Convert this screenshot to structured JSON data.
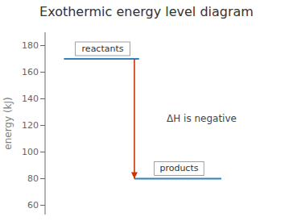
{
  "chart_data": {
    "type": "energy_level",
    "title": "Exothermic energy level diagram",
    "ylabel": "energy (kJ)",
    "categories": [
      "reactants",
      "products"
    ],
    "values": [
      170,
      80
    ],
    "annotation": "ΔH is negative",
    "color": "#cc3300",
    "ylim": [
      53,
      190
    ],
    "yticks": [
      60,
      80,
      100,
      120,
      140,
      160,
      180
    ]
  }
}
